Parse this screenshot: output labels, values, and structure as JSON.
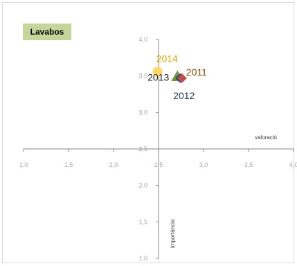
{
  "chart_data": {
    "type": "scatter",
    "title": "Lavabos",
    "xlabel": "valoració",
    "ylabel": "importància",
    "xlim": [
      1.0,
      4.0
    ],
    "ylim": [
      1.0,
      4.0
    ],
    "axis_cross": {
      "x": 2.5,
      "y": 2.5
    },
    "x_ticks": [
      "1,0",
      "1,5",
      "2,0",
      "2,5",
      "3,0",
      "3,5",
      "4,0"
    ],
    "y_ticks": [
      "1,0",
      "1,5",
      "2,0",
      "2,5",
      "3,0",
      "3,5",
      "4,0"
    ],
    "grid": false,
    "points": [
      {
        "label": "2011",
        "x": 2.76,
        "y": 3.47,
        "marker": "diamond",
        "color": "#c0504d",
        "label_color": "#984807"
      },
      {
        "label": "2012",
        "x": 2.74,
        "y": 3.47,
        "marker": "diamond",
        "color": "#1f497d",
        "label_color": "#1f3864"
      },
      {
        "label": "2013",
        "x": 2.71,
        "y": 3.49,
        "marker": "triangle",
        "color": "#77933c",
        "label_color": "#262626"
      },
      {
        "label": "2014",
        "x": 2.49,
        "y": 3.56,
        "marker": "circle",
        "color": "#ffd966",
        "label_color": "#e3a800"
      }
    ]
  }
}
